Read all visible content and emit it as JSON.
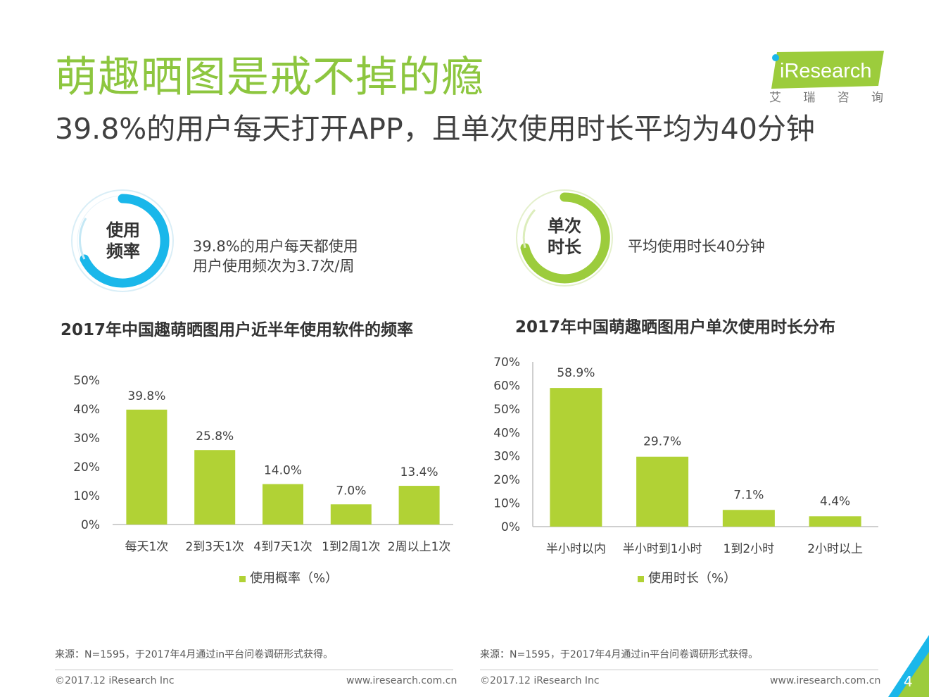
{
  "header": {
    "title": "萌趣晒图是戒不掉的瘾",
    "subtitle": "39.8%的用户每天打开APP，且单次使用时长平均为40分钟"
  },
  "logo": {
    "brand": "iResearch",
    "cn_chars": [
      "艾",
      "瑞",
      "咨",
      "询"
    ]
  },
  "stats": {
    "frequency": {
      "label_line1": "使用",
      "label_line2": "频率",
      "text_line1": "39.8%的用户每天都使用",
      "text_line2": "用户使用频次为3.7次/周"
    },
    "duration": {
      "label_line1": "单次",
      "label_line2": "时长",
      "text_line1": "平均使用时长40分钟"
    }
  },
  "colors": {
    "title_green": "#8dc63f",
    "bar_green": "#b1d235",
    "ring_blue": "#1ab7ea",
    "ring_green": "#9ccc3c",
    "axis": "#bfbfbf"
  },
  "chart_data": [
    {
      "type": "bar",
      "title": "2017年中国趣萌晒图用户近半年使用软件的频率",
      "categories": [
        "每天1次",
        "2到3天1次",
        "4到7天1次",
        "1到2周1次",
        "2周以上1次"
      ],
      "values": [
        39.8,
        25.8,
        14.0,
        7.0,
        13.4
      ],
      "data_labels": [
        "39.8%",
        "25.8%",
        "14.0%",
        "7.0%",
        "13.4%"
      ],
      "yticks": [
        "0%",
        "10%",
        "20%",
        "30%",
        "40%",
        "50%"
      ],
      "ylim": [
        0,
        50
      ],
      "legend": "使用概率（%）",
      "source": "来源：N=1595，于2017年4月通过in平台问卷调研形式获得。"
    },
    {
      "type": "bar",
      "title": "2017年中国萌趣晒图用户单次使用时长分布",
      "categories": [
        "半小时以内",
        "半小时到1小时",
        "1到2小时",
        "2小时以上"
      ],
      "values": [
        58.9,
        29.7,
        7.1,
        4.4
      ],
      "data_labels": [
        "58.9%",
        "29.7%",
        "7.1%",
        "4.4%"
      ],
      "yticks": [
        "0%",
        "10%",
        "20%",
        "30%",
        "40%",
        "50%",
        "60%",
        "70%"
      ],
      "ylim": [
        0,
        70
      ],
      "legend": "使用时长（%）",
      "source": "来源：N=1595，于2017年4月通过in平台问卷调研形式获得。"
    }
  ],
  "footer": {
    "left_copyright": "©2017.12 iResearch Inc",
    "left_url": "www.iresearch.com.cn",
    "right_copyright": "©2017.12 iResearch Inc",
    "right_url": "www.iresearch.com.cn",
    "page_number": "4"
  }
}
